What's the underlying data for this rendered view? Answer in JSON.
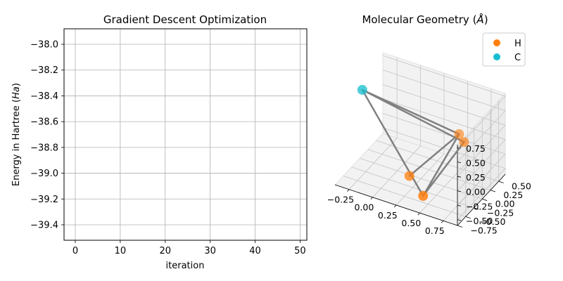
{
  "chart_data": [
    {
      "type": "line",
      "title": "Gradient Descent Optimization",
      "xlabel": "iteration",
      "ylabel_main": "Energy in Hartree (",
      "ylabel_unit": "Ha",
      "ylabel_close": ")",
      "xlim": [
        -2.5,
        51.5
      ],
      "ylim": [
        -39.52,
        -37.88
      ],
      "xticks": [
        0,
        10,
        20,
        30,
        40,
        50
      ],
      "yticks": [
        -38.0,
        -38.2,
        -38.4,
        -38.6,
        -38.8,
        -39.0,
        -39.2,
        -39.4
      ],
      "ytick_labels": [
        "−38.0",
        "−38.2",
        "−38.4",
        "−38.6",
        "−38.8",
        "−39.0",
        "−39.2",
        "−39.4"
      ],
      "grid": true,
      "series": []
    },
    {
      "type": "scatter",
      "title_main": "Molecular Geometry (",
      "title_unit": "Å",
      "title_close": ")",
      "projection": "3d",
      "xlim": [
        -0.4,
        0.9
      ],
      "ylim": [
        -0.75,
        0.7
      ],
      "zlim": [
        -0.6,
        0.8
      ],
      "xticks": [
        -0.25,
        0.0,
        0.25,
        0.5,
        0.75
      ],
      "xtick_labels": [
        "−0.25",
        "0.00",
        "0.25",
        "0.50",
        "0.75"
      ],
      "yticks": [
        -0.75,
        -0.5,
        -0.25,
        0.0,
        0.25,
        0.5
      ],
      "ytick_labels": [
        "−0.75",
        "−0.50",
        "−0.25",
        "0.00",
        "0.25",
        "0.50"
      ],
      "zticks": [
        -0.5,
        -0.25,
        0.0,
        0.25,
        0.5,
        0.75
      ],
      "ztick_labels": [
        "−0.50",
        "−0.25",
        "0.00",
        "0.25",
        "0.50",
        "0.75"
      ],
      "grid": true,
      "legend": {
        "placement": "top-right",
        "entries": [
          {
            "label": "H",
            "color": "#ff7f0e"
          },
          {
            "label": "C",
            "color": "#17becf"
          }
        ]
      },
      "atoms": [
        {
          "element": "C",
          "color": "#17becf",
          "x": -0.32,
          "y": -0.15,
          "z": 0.72
        },
        {
          "element": "H",
          "color": "#ff7f0e",
          "x": 0.55,
          "y": 0.3,
          "z": 0.15
        },
        {
          "element": "H",
          "color": "#ff7f0e",
          "x": 0.62,
          "y": 0.25,
          "z": 0.08
        },
        {
          "element": "H",
          "color": "#ff7f0e",
          "x": 0.18,
          "y": -0.15,
          "z": -0.5
        },
        {
          "element": "H",
          "color": "#ff7f0e",
          "x": 0.42,
          "y": -0.42,
          "z": -0.55
        }
      ],
      "bonds": [
        [
          0,
          1
        ],
        [
          0,
          2
        ],
        [
          0,
          4
        ],
        [
          1,
          3
        ],
        [
          1,
          4
        ],
        [
          2,
          4
        ]
      ],
      "bond_color": "#808080"
    }
  ]
}
